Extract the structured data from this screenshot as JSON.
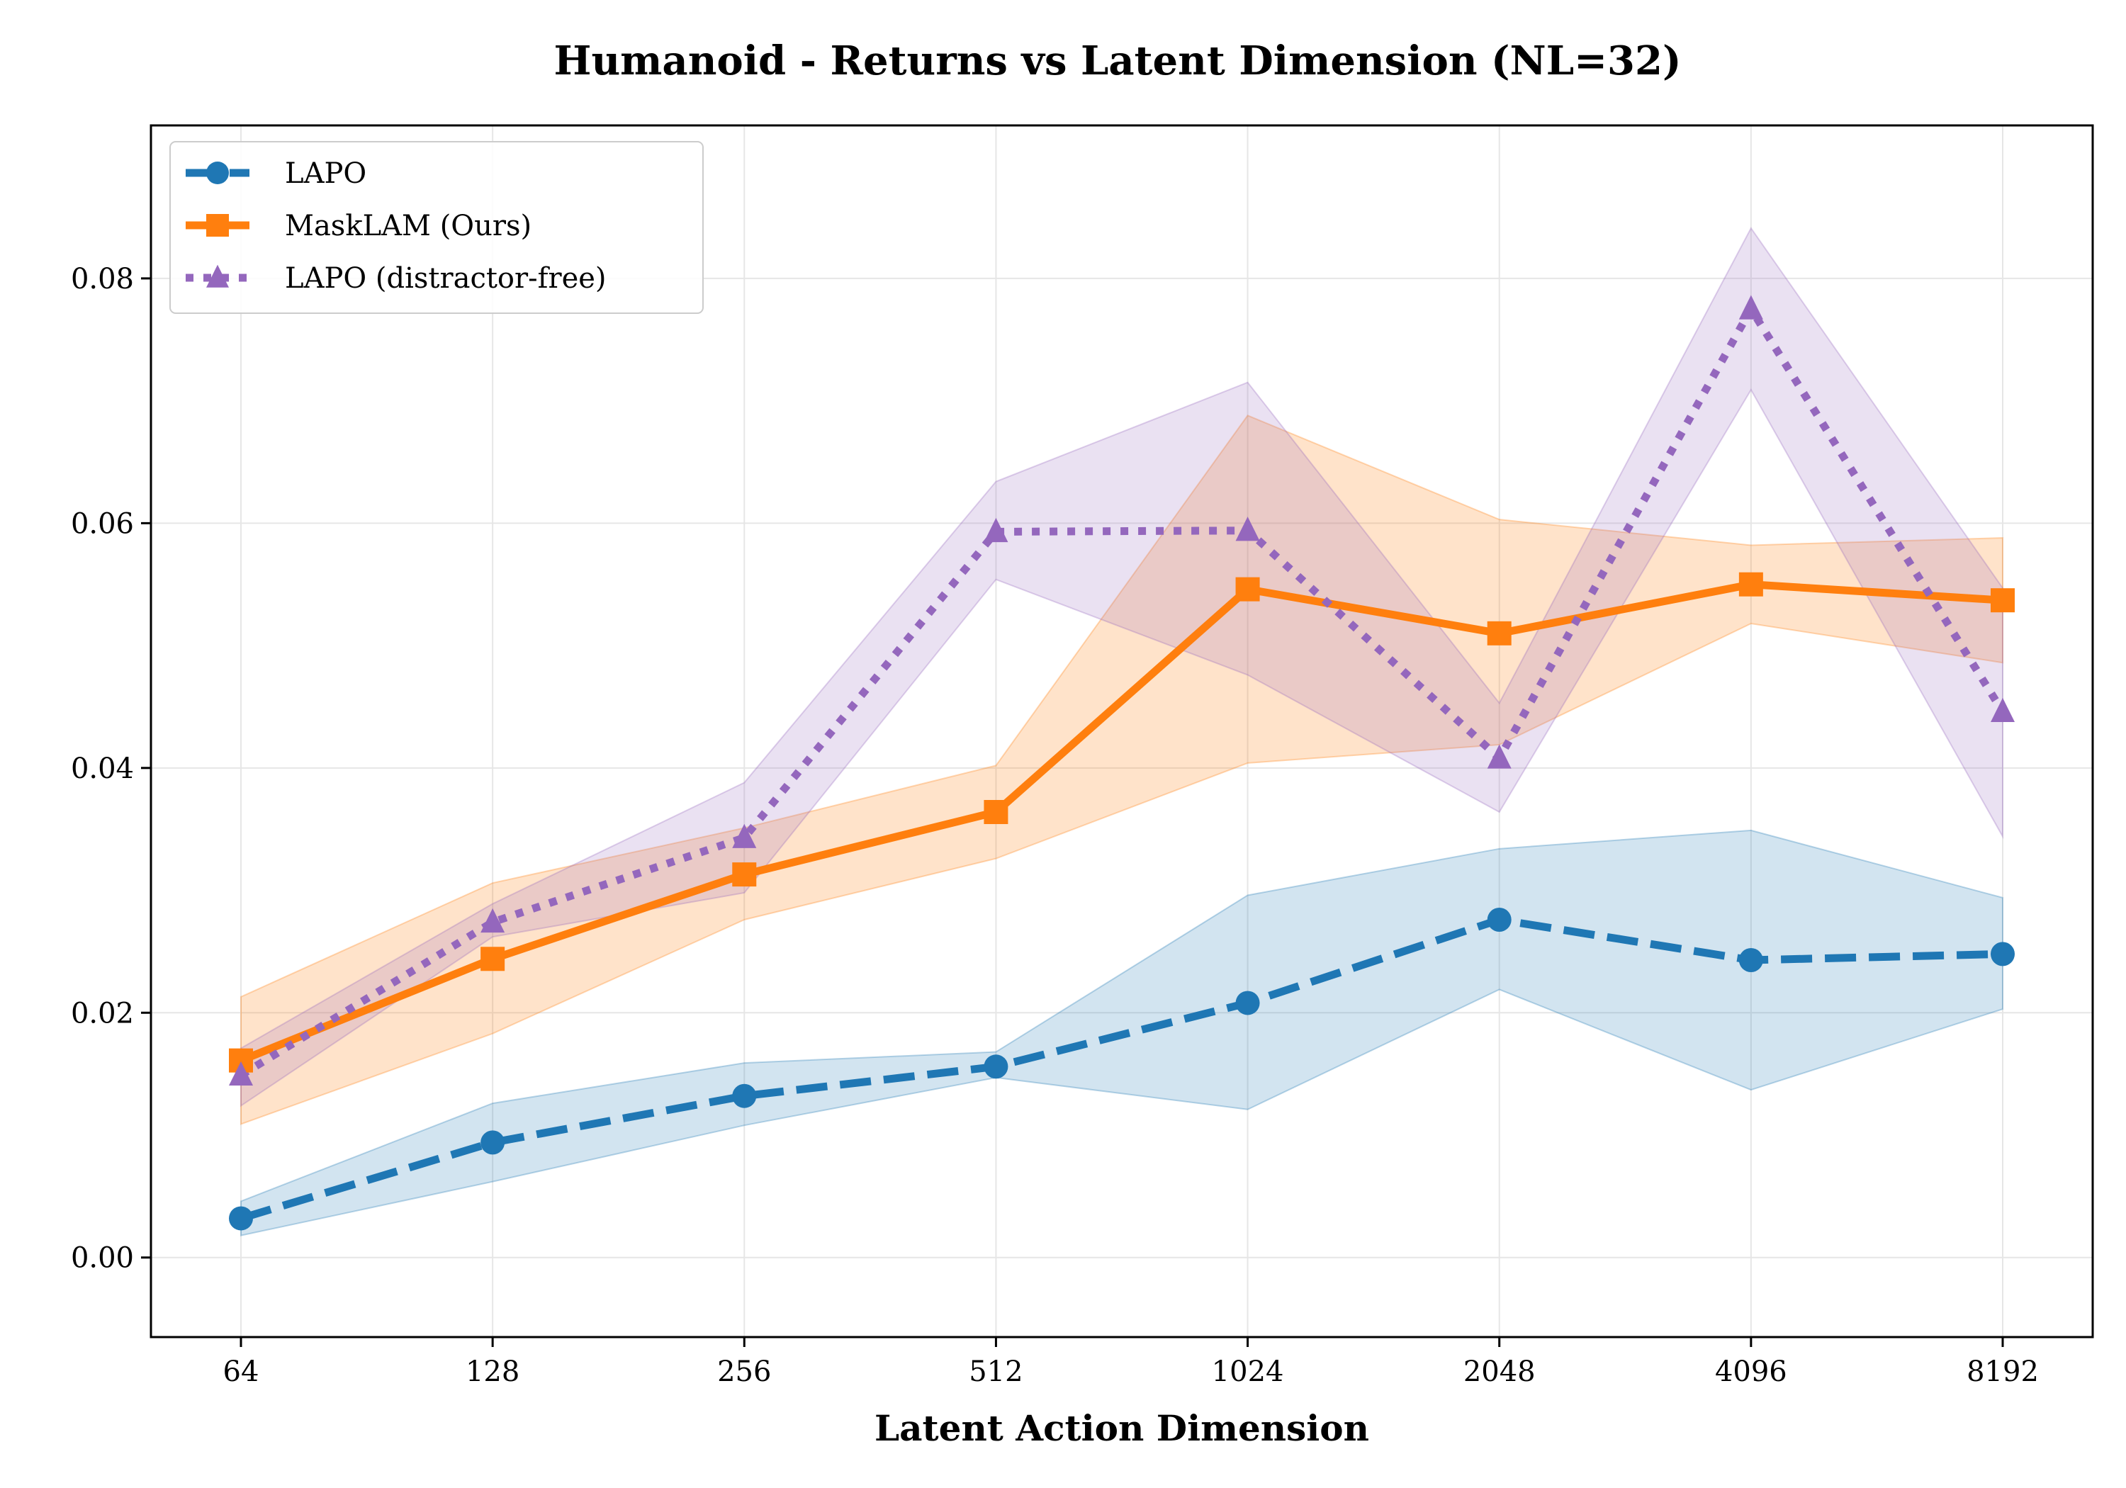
{
  "chart_data": {
    "type": "line",
    "title": "Humanoid - Returns vs Latent Dimension (NL=32)",
    "xlabel": "Latent Action Dimension",
    "ylabel": "",
    "categories": [
      "64",
      "128",
      "256",
      "512",
      "1024",
      "2048",
      "4096",
      "8192"
    ],
    "ylim": [
      -0.0065,
      0.0925
    ],
    "yticks": [
      0.0,
      0.02,
      0.04,
      0.06,
      0.08
    ],
    "ytick_labels": [
      "0.00",
      "0.02",
      "0.04",
      "0.06",
      "0.08"
    ],
    "grid": true,
    "legend_position": "top-left",
    "series": [
      {
        "name": "LAPO",
        "color": "#1f77b4",
        "line_style": "dashed",
        "marker": "circle",
        "values": [
          0.0032,
          0.0094,
          0.0132,
          0.0156,
          0.0208,
          0.0276,
          0.0243,
          0.0248
        ],
        "lower": [
          0.0018,
          0.0062,
          0.0108,
          0.0147,
          0.0121,
          0.0219,
          0.0137,
          0.0203
        ],
        "upper": [
          0.0046,
          0.0126,
          0.0159,
          0.0168,
          0.0296,
          0.0334,
          0.0349,
          0.0294
        ]
      },
      {
        "name": "MaskLAM (Ours)",
        "color": "#ff7f0e",
        "line_style": "solid",
        "marker": "square",
        "values": [
          0.0161,
          0.0244,
          0.0313,
          0.0364,
          0.0546,
          0.051,
          0.055,
          0.0537
        ],
        "lower": [
          0.0109,
          0.0183,
          0.0276,
          0.0326,
          0.0404,
          0.0419,
          0.0518,
          0.0486
        ],
        "upper": [
          0.0213,
          0.0306,
          0.0351,
          0.0402,
          0.0688,
          0.0603,
          0.0582,
          0.0588
        ]
      },
      {
        "name": "LAPO (distractor-free)",
        "color": "#9467bd",
        "line_style": "dotted",
        "marker": "triangle",
        "values": [
          0.0149,
          0.0274,
          0.0343,
          0.0593,
          0.0594,
          0.0408,
          0.0775,
          0.0446
        ],
        "lower": [
          0.0124,
          0.0262,
          0.0298,
          0.0554,
          0.0476,
          0.0364,
          0.0709,
          0.0344
        ],
        "upper": [
          0.0171,
          0.0289,
          0.0388,
          0.0634,
          0.0715,
          0.0453,
          0.0841,
          0.0547
        ]
      }
    ]
  }
}
